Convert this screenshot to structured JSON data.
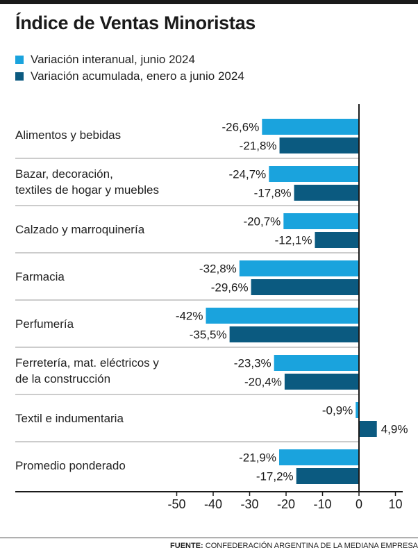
{
  "title": "Índice de Ventas Minoristas",
  "legend": [
    {
      "label": "Variación interanual, junio 2024",
      "color": "#1aa3dd"
    },
    {
      "label": "Variación acumulada, enero a junio 2024",
      "color": "#0b5a80"
    }
  ],
  "source": {
    "prefix": "FUENTE:",
    "text": "CONFEDERACIÓN ARGENTINA DE LA MEDIANA EMPRESA"
  },
  "chart_data": {
    "type": "bar",
    "orientation": "horizontal",
    "title": "Índice de Ventas Minoristas",
    "categories": [
      "Alimentos y bebidas",
      "Bazar, decoración,\ntextiles de hogar y muebles",
      "Calzado y marroquinería",
      "Farmacia",
      "Perfumería",
      "Ferretería, mat. eléctricos y\nde la construcción",
      "Textil e indumentaria",
      "Promedio ponderado"
    ],
    "series": [
      {
        "name": "Variación interanual, junio 2024",
        "color": "#1aa3dd",
        "values": [
          -26.6,
          -24.7,
          -20.7,
          -32.8,
          -42,
          -23.3,
          -0.9,
          -21.9
        ],
        "labels": [
          "-26,6%",
          "-24,7%",
          "-20,7%",
          "-32,8%",
          "-42%",
          "-23,3%",
          "-0,9%",
          "-21,9%"
        ]
      },
      {
        "name": "Variación acumulada, enero a junio 2024",
        "color": "#0b5a80",
        "values": [
          -21.8,
          -17.8,
          -12.1,
          -29.6,
          -35.5,
          -20.4,
          4.9,
          -17.2
        ],
        "labels": [
          "-21,8%",
          "-17,8%",
          "-12,1%",
          "-29,6%",
          "-35,5%",
          "-20,4%",
          "4,9%",
          "-17,2%"
        ]
      }
    ],
    "xlim": [
      -50,
      10
    ],
    "xticks": [
      -50,
      -40,
      -30,
      -20,
      -10,
      0,
      10
    ],
    "xtick_labels": [
      "-50",
      "-40",
      "-30",
      "-20",
      "-10",
      "0",
      "10"
    ]
  }
}
